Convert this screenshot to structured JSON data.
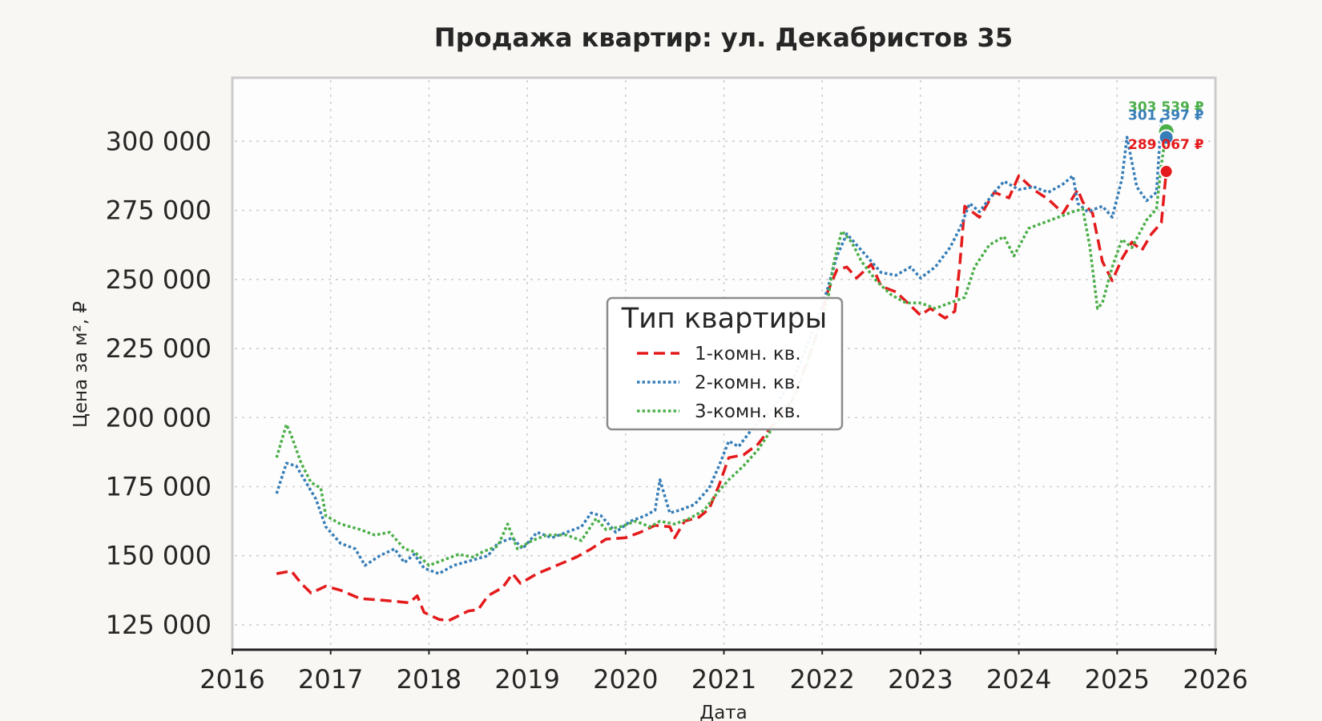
{
  "chart_data": {
    "type": "line",
    "title": "Продажа квартир: ул. Декабристов 35",
    "xlabel": "Дата",
    "ylabel": "Цена за м², ₽",
    "xlim": [
      2016.0,
      2026.0
    ],
    "ylim": [
      116000,
      323000
    ],
    "x_ticks": [
      2016,
      2017,
      2018,
      2019,
      2020,
      2021,
      2022,
      2023,
      2024,
      2025,
      2026
    ],
    "x_tick_labels": [
      "2016",
      "2017",
      "2018",
      "2019",
      "2020",
      "2021",
      "2022",
      "2023",
      "2024",
      "2025",
      "2026"
    ],
    "y_ticks": [
      125000,
      150000,
      175000,
      200000,
      225000,
      250000,
      275000,
      300000
    ],
    "y_tick_labels": [
      "125 000",
      "150 000",
      "175 000",
      "200 000",
      "225 000",
      "250 000",
      "275 000",
      "300 000"
    ],
    "grid": true,
    "legend": {
      "title": "Тип квартиры",
      "placement": "center"
    },
    "series": [
      {
        "name": "1-комн. кв.",
        "color": "#e41a1c",
        "dash": "dashed",
        "points": [
          [
            2016.45,
            143500
          ],
          [
            2016.6,
            144500
          ],
          [
            2016.7,
            140000
          ],
          [
            2016.8,
            136500
          ],
          [
            2016.95,
            139000
          ],
          [
            2017.1,
            137500
          ],
          [
            2017.3,
            134500
          ],
          [
            2017.5,
            134000
          ],
          [
            2017.65,
            133500
          ],
          [
            2017.8,
            133000
          ],
          [
            2017.88,
            135500
          ],
          [
            2017.95,
            129500
          ],
          [
            2018.1,
            127000
          ],
          [
            2018.2,
            126500
          ],
          [
            2018.4,
            130000
          ],
          [
            2018.5,
            130500
          ],
          [
            2018.6,
            135500
          ],
          [
            2018.75,
            138500
          ],
          [
            2018.85,
            143500
          ],
          [
            2018.93,
            140000
          ],
          [
            2019.1,
            143500
          ],
          [
            2019.3,
            146500
          ],
          [
            2019.5,
            149500
          ],
          [
            2019.65,
            152500
          ],
          [
            2019.8,
            156000
          ],
          [
            2020.0,
            156500
          ],
          [
            2020.15,
            158500
          ],
          [
            2020.3,
            161000
          ],
          [
            2020.45,
            160500
          ],
          [
            2020.5,
            156500
          ],
          [
            2020.6,
            162500
          ],
          [
            2020.75,
            164000
          ],
          [
            2020.85,
            167000
          ],
          [
            2020.95,
            175500
          ],
          [
            2021.05,
            185500
          ],
          [
            2021.2,
            186500
          ],
          [
            2021.35,
            190500
          ],
          [
            2021.5,
            197500
          ],
          [
            2021.7,
            206500
          ],
          [
            2021.85,
            220500
          ],
          [
            2021.95,
            231000
          ],
          [
            2022.05,
            245000
          ],
          [
            2022.15,
            253500
          ],
          [
            2022.25,
            254500
          ],
          [
            2022.35,
            250500
          ],
          [
            2022.5,
            255500
          ],
          [
            2022.6,
            247500
          ],
          [
            2022.75,
            245500
          ],
          [
            2022.9,
            240500
          ],
          [
            2023.0,
            237000
          ],
          [
            2023.1,
            239500
          ],
          [
            2023.25,
            236000
          ],
          [
            2023.35,
            238500
          ],
          [
            2023.4,
            255500
          ],
          [
            2023.45,
            276500
          ],
          [
            2023.6,
            272500
          ],
          [
            2023.75,
            281500
          ],
          [
            2023.9,
            279500
          ],
          [
            2024.0,
            287500
          ],
          [
            2024.15,
            282500
          ],
          [
            2024.3,
            279000
          ],
          [
            2024.45,
            274000
          ],
          [
            2024.6,
            282500
          ],
          [
            2024.65,
            278000
          ],
          [
            2024.75,
            274000
          ],
          [
            2024.85,
            256500
          ],
          [
            2024.95,
            249500
          ],
          [
            2025.05,
            257500
          ],
          [
            2025.15,
            263500
          ],
          [
            2025.25,
            260500
          ],
          [
            2025.35,
            266500
          ],
          [
            2025.45,
            270500
          ],
          [
            2025.5,
            289067
          ]
        ]
      },
      {
        "name": "2-комн. кв.",
        "color": "#377eb8",
        "dash": "dotted",
        "points": [
          [
            2016.45,
            172500
          ],
          [
            2016.55,
            183500
          ],
          [
            2016.65,
            182500
          ],
          [
            2016.75,
            176500
          ],
          [
            2016.85,
            170500
          ],
          [
            2016.95,
            160500
          ],
          [
            2017.1,
            154500
          ],
          [
            2017.25,
            152500
          ],
          [
            2017.35,
            146500
          ],
          [
            2017.5,
            150000
          ],
          [
            2017.65,
            152500
          ],
          [
            2017.75,
            147500
          ],
          [
            2017.85,
            150500
          ],
          [
            2017.95,
            145500
          ],
          [
            2018.1,
            143500
          ],
          [
            2018.25,
            146500
          ],
          [
            2018.45,
            148500
          ],
          [
            2018.6,
            150000
          ],
          [
            2018.7,
            154500
          ],
          [
            2018.85,
            156500
          ],
          [
            2018.95,
            152500
          ],
          [
            2019.1,
            158500
          ],
          [
            2019.25,
            156500
          ],
          [
            2019.4,
            158500
          ],
          [
            2019.55,
            160500
          ],
          [
            2019.65,
            165500
          ],
          [
            2019.75,
            164500
          ],
          [
            2019.9,
            158500
          ],
          [
            2020.05,
            162500
          ],
          [
            2020.2,
            164500
          ],
          [
            2020.3,
            166500
          ],
          [
            2020.35,
            177500
          ],
          [
            2020.45,
            165500
          ],
          [
            2020.55,
            166500
          ],
          [
            2020.7,
            168500
          ],
          [
            2020.85,
            174500
          ],
          [
            2020.95,
            182500
          ],
          [
            2021.05,
            191500
          ],
          [
            2021.15,
            189500
          ],
          [
            2021.3,
            196500
          ],
          [
            2021.5,
            203500
          ],
          [
            2021.7,
            213500
          ],
          [
            2021.85,
            226500
          ],
          [
            2021.95,
            236000
          ],
          [
            2022.05,
            246000
          ],
          [
            2022.15,
            258500
          ],
          [
            2022.25,
            266500
          ],
          [
            2022.35,
            262500
          ],
          [
            2022.45,
            258500
          ],
          [
            2022.6,
            252500
          ],
          [
            2022.75,
            251500
          ],
          [
            2022.9,
            254500
          ],
          [
            2023.0,
            250500
          ],
          [
            2023.15,
            254500
          ],
          [
            2023.3,
            261500
          ],
          [
            2023.4,
            268500
          ],
          [
            2023.5,
            277500
          ],
          [
            2023.6,
            274500
          ],
          [
            2023.75,
            281500
          ],
          [
            2023.85,
            285500
          ],
          [
            2024.0,
            282500
          ],
          [
            2024.15,
            283500
          ],
          [
            2024.3,
            281500
          ],
          [
            2024.45,
            284500
          ],
          [
            2024.55,
            287500
          ],
          [
            2024.6,
            277500
          ],
          [
            2024.7,
            274500
          ],
          [
            2024.85,
            276500
          ],
          [
            2024.95,
            272500
          ],
          [
            2025.05,
            286500
          ],
          [
            2025.1,
            301500
          ],
          [
            2025.2,
            283500
          ],
          [
            2025.3,
            278500
          ],
          [
            2025.4,
            281500
          ],
          [
            2025.45,
            308500
          ],
          [
            2025.5,
            301397
          ]
        ]
      },
      {
        "name": "3-комн. кв.",
        "color": "#4daf4a",
        "dash": "dotted",
        "points": [
          [
            2016.45,
            185500
          ],
          [
            2016.55,
            197500
          ],
          [
            2016.6,
            193500
          ],
          [
            2016.7,
            183500
          ],
          [
            2016.8,
            176500
          ],
          [
            2016.9,
            174500
          ],
          [
            2016.95,
            164500
          ],
          [
            2017.1,
            161500
          ],
          [
            2017.3,
            159500
          ],
          [
            2017.45,
            157500
          ],
          [
            2017.6,
            158500
          ],
          [
            2017.75,
            152500
          ],
          [
            2017.85,
            151500
          ],
          [
            2018.0,
            146500
          ],
          [
            2018.15,
            148500
          ],
          [
            2018.3,
            150500
          ],
          [
            2018.45,
            149500
          ],
          [
            2018.55,
            151500
          ],
          [
            2018.7,
            153500
          ],
          [
            2018.8,
            161500
          ],
          [
            2018.9,
            152500
          ],
          [
            2019.05,
            155500
          ],
          [
            2019.2,
            157500
          ],
          [
            2019.4,
            157500
          ],
          [
            2019.55,
            155500
          ],
          [
            2019.7,
            163500
          ],
          [
            2019.8,
            159500
          ],
          [
            2019.95,
            160500
          ],
          [
            2020.1,
            162500
          ],
          [
            2020.25,
            160500
          ],
          [
            2020.35,
            162500
          ],
          [
            2020.5,
            161500
          ],
          [
            2020.65,
            163500
          ],
          [
            2020.8,
            166500
          ],
          [
            2020.95,
            173500
          ],
          [
            2021.05,
            177500
          ],
          [
            2021.2,
            182500
          ],
          [
            2021.35,
            188500
          ],
          [
            2021.5,
            196500
          ],
          [
            2021.7,
            206500
          ],
          [
            2021.85,
            219500
          ],
          [
            2021.95,
            231000
          ],
          [
            2022.05,
            241000
          ],
          [
            2022.12,
            256500
          ],
          [
            2022.2,
            267500
          ],
          [
            2022.3,
            263500
          ],
          [
            2022.4,
            256500
          ],
          [
            2022.55,
            249500
          ],
          [
            2022.7,
            244500
          ],
          [
            2022.85,
            241500
          ],
          [
            2023.0,
            241500
          ],
          [
            2023.15,
            239500
          ],
          [
            2023.3,
            241500
          ],
          [
            2023.45,
            243500
          ],
          [
            2023.55,
            254500
          ],
          [
            2023.7,
            262500
          ],
          [
            2023.85,
            265500
          ],
          [
            2023.95,
            258500
          ],
          [
            2024.1,
            268500
          ],
          [
            2024.25,
            270500
          ],
          [
            2024.4,
            272500
          ],
          [
            2024.55,
            274500
          ],
          [
            2024.65,
            275500
          ],
          [
            2024.72,
            262500
          ],
          [
            2024.8,
            239500
          ],
          [
            2024.85,
            241500
          ],
          [
            2024.95,
            254500
          ],
          [
            2025.05,
            264500
          ],
          [
            2025.15,
            261500
          ],
          [
            2025.3,
            271500
          ],
          [
            2025.4,
            275500
          ],
          [
            2025.45,
            291500
          ],
          [
            2025.5,
            303539
          ]
        ]
      }
    ],
    "end_labels": [
      {
        "series": "3-комн. кв.",
        "text": "303 539 ₽",
        "value": 303539,
        "color": "#4daf4a"
      },
      {
        "series": "2-комн. кв.",
        "text": "301 397 ₽",
        "value": 301397,
        "color": "#377eb8"
      },
      {
        "series": "1-комн. кв.",
        "text": "289 067 ₽",
        "value": 289067,
        "color": "#e41a1c"
      }
    ]
  }
}
